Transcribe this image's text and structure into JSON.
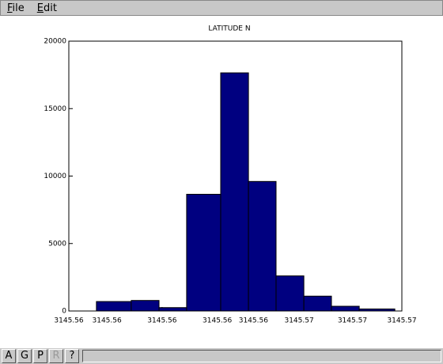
{
  "menu": [
    "File",
    "Edit"
  ],
  "toolbar": [
    "A",
    "G",
    "P",
    "R",
    "?"
  ],
  "chart_data": {
    "type": "histogram",
    "title": "LATITUDE N",
    "bins": [
      3145.55645,
      3145.55828,
      3145.55974,
      3145.56119,
      3145.56298,
      3145.56444,
      3145.56589,
      3145.56735,
      3145.5688,
      3145.57026,
      3145.57213
    ],
    "values": [
      700,
      780,
      250,
      8650,
      17650,
      9600,
      2600,
      1100,
      350,
      150
    ],
    "color": "#000080",
    "xlim": [
      3145.555,
      3145.5725
    ],
    "xticks": [
      {
        "value": 3145.555,
        "label": "3145.56"
      },
      {
        "value": 3145.557,
        "label": "3145.56"
      },
      {
        "value": 3145.5599,
        "label": "3145.56"
      },
      {
        "value": 3145.5628,
        "label": "3145.56"
      },
      {
        "value": 3145.5647,
        "label": "3145.56"
      },
      {
        "value": 3145.5671,
        "label": "3145.57"
      },
      {
        "value": 3145.5699,
        "label": "3145.57"
      },
      {
        "value": 3145.5725,
        "label": "3145.57"
      }
    ],
    "ylim": [
      0,
      20000
    ],
    "yticks": [
      0,
      5000,
      10000,
      15000,
      20000
    ],
    "grid": false
  }
}
